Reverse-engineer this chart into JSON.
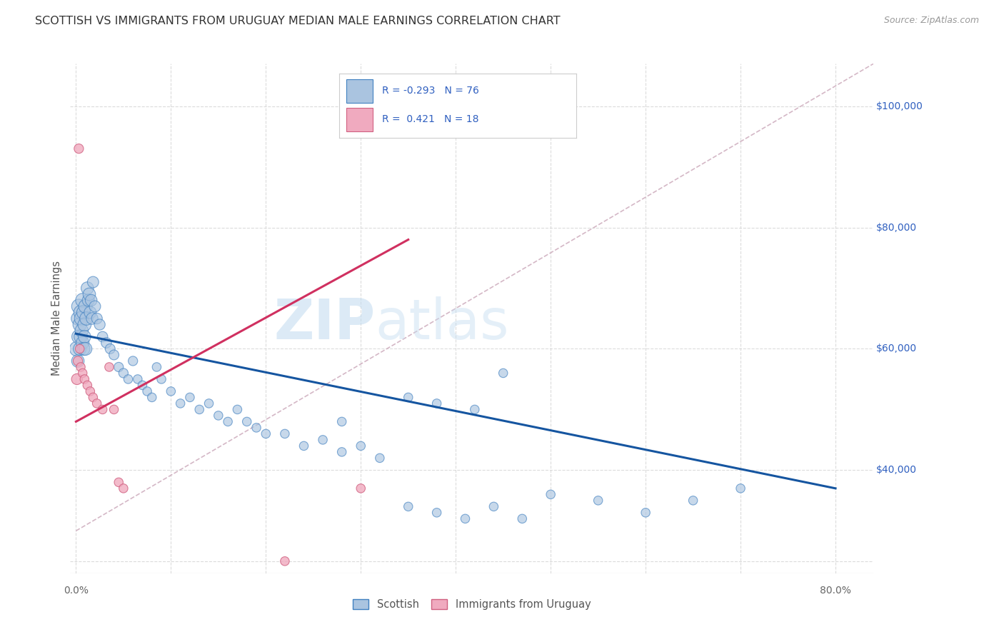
{
  "title": "SCOTTISH VS IMMIGRANTS FROM URUGUAY MEDIAN MALE EARNINGS CORRELATION CHART",
  "source": "Source: ZipAtlas.com",
  "ylabel": "Median Male Earnings",
  "ymin": 23000,
  "ymax": 107000,
  "xmin": -0.006,
  "xmax": 0.84,
  "watermark_zip": "ZIP",
  "watermark_atlas": "atlas",
  "r_scottish": -0.293,
  "n_scottish": 76,
  "r_uruguay": 0.421,
  "n_uruguay": 18,
  "blue_fill": "#aac4e0",
  "blue_edge": "#4080c0",
  "pink_fill": "#f0aabf",
  "pink_edge": "#d06080",
  "blue_line": "#1555a0",
  "pink_line": "#d03060",
  "dash_line": "#d0b0c0",
  "grid_color": "#d8d8d8",
  "bg_color": "#ffffff",
  "title_color": "#333333",
  "right_axis_color": "#3060c0",
  "scottish_x": [
    0.001,
    0.002,
    0.002,
    0.003,
    0.003,
    0.004,
    0.004,
    0.005,
    0.005,
    0.006,
    0.006,
    0.007,
    0.007,
    0.008,
    0.008,
    0.009,
    0.009,
    0.01,
    0.01,
    0.011,
    0.012,
    0.013,
    0.014,
    0.015,
    0.016,
    0.017,
    0.018,
    0.02,
    0.022,
    0.025,
    0.028,
    0.032,
    0.036,
    0.04,
    0.045,
    0.05,
    0.055,
    0.06,
    0.065,
    0.07,
    0.075,
    0.08,
    0.085,
    0.09,
    0.1,
    0.11,
    0.12,
    0.13,
    0.14,
    0.15,
    0.16,
    0.17,
    0.18,
    0.19,
    0.2,
    0.22,
    0.24,
    0.26,
    0.28,
    0.3,
    0.32,
    0.35,
    0.38,
    0.41,
    0.44,
    0.47,
    0.5,
    0.55,
    0.6,
    0.65,
    0.7,
    0.45,
    0.38,
    0.42,
    0.35,
    0.28
  ],
  "scottish_y": [
    60000,
    65000,
    58000,
    67000,
    62000,
    64000,
    60000,
    66000,
    62000,
    65000,
    63000,
    61000,
    68000,
    60000,
    66000,
    64000,
    62000,
    67000,
    60000,
    65000,
    70000,
    68000,
    69000,
    66000,
    68000,
    65000,
    71000,
    67000,
    65000,
    64000,
    62000,
    61000,
    60000,
    59000,
    57000,
    56000,
    55000,
    58000,
    55000,
    54000,
    53000,
    52000,
    57000,
    55000,
    53000,
    51000,
    52000,
    50000,
    51000,
    49000,
    48000,
    50000,
    48000,
    47000,
    46000,
    46000,
    44000,
    45000,
    43000,
    44000,
    42000,
    34000,
    33000,
    32000,
    34000,
    32000,
    36000,
    35000,
    33000,
    35000,
    37000,
    56000,
    51000,
    50000,
    52000,
    48000
  ],
  "scottish_sizes": [
    220,
    180,
    160,
    210,
    200,
    190,
    170,
    200,
    180,
    210,
    180,
    170,
    200,
    170,
    190,
    180,
    160,
    190,
    170,
    180,
    160,
    150,
    160,
    150,
    140,
    140,
    130,
    130,
    120,
    120,
    110,
    110,
    100,
    100,
    90,
    90,
    80,
    90,
    80,
    80,
    80,
    80,
    80,
    80,
    80,
    80,
    80,
    80,
    80,
    80,
    80,
    80,
    80,
    80,
    80,
    80,
    80,
    80,
    80,
    80,
    80,
    80,
    80,
    80,
    80,
    80,
    80,
    80,
    80,
    80,
    80,
    80,
    80,
    80,
    80,
    80
  ],
  "uruguay_x": [
    0.001,
    0.002,
    0.003,
    0.004,
    0.005,
    0.007,
    0.009,
    0.012,
    0.015,
    0.018,
    0.022,
    0.028,
    0.035,
    0.04,
    0.045,
    0.05,
    0.22,
    0.3
  ],
  "uruguay_y": [
    55000,
    58000,
    93000,
    60000,
    57000,
    56000,
    55000,
    54000,
    53000,
    52000,
    51000,
    50000,
    57000,
    50000,
    38000,
    37000,
    25000,
    37000
  ],
  "uruguay_sizes": [
    120,
    90,
    90,
    80,
    80,
    80,
    80,
    80,
    80,
    80,
    80,
    80,
    80,
    80,
    80,
    80,
    80,
    80
  ]
}
